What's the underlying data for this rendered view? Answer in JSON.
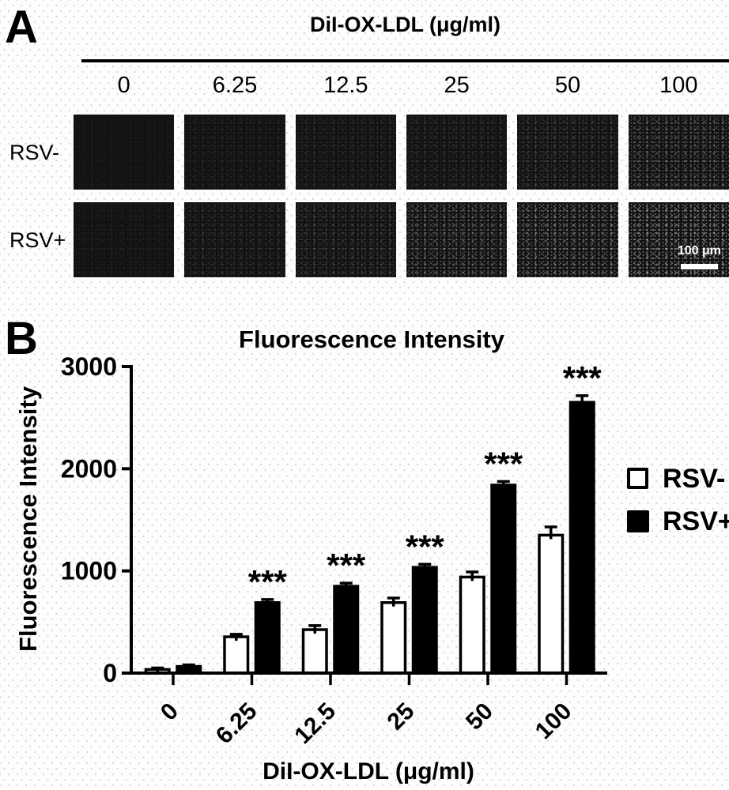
{
  "panel_a": {
    "label": "A",
    "title": "DiI-OX-LDL (μg/ml)",
    "column_labels": [
      "0",
      "6.25",
      "12.5",
      "25",
      "50",
      "100"
    ],
    "row_labels": [
      "RSV-",
      "RSV+"
    ],
    "scale_bar_label": "100 μm",
    "relative_brightness": [
      [
        0.05,
        0.1,
        0.13,
        0.16,
        0.22,
        0.38
      ],
      [
        0.07,
        0.16,
        0.22,
        0.4,
        0.48,
        0.6
      ]
    ]
  },
  "panel_b": {
    "label": "B"
  },
  "chart_data": {
    "type": "bar",
    "title": "Fluorescence Intensity",
    "xlabel": "DiI-OX-LDL (μg/ml)",
    "ylabel": "Fluorescence Intensity",
    "categories": [
      "0",
      "6.25",
      "12.5",
      "25",
      "50",
      "100"
    ],
    "series": [
      {
        "name": "RSV-",
        "fill": "#ffffff",
        "values": [
          35,
          355,
          425,
          690,
          940,
          1350
        ],
        "errors": [
          15,
          25,
          40,
          45,
          50,
          80
        ]
      },
      {
        "name": "RSV+",
        "fill": "#000000",
        "values": [
          65,
          690,
          850,
          1035,
          1840,
          2650
        ],
        "errors": [
          15,
          30,
          30,
          30,
          35,
          65
        ]
      }
    ],
    "significance": {
      "label": "***",
      "series": "RSV+",
      "category_indices": [
        1,
        2,
        3,
        4,
        5
      ]
    },
    "ylim": [
      0,
      3000
    ],
    "yticks": [
      0,
      1000,
      2000,
      3000
    ],
    "legend_position": "right",
    "grid": false,
    "bar_edge_color": "#000000"
  }
}
